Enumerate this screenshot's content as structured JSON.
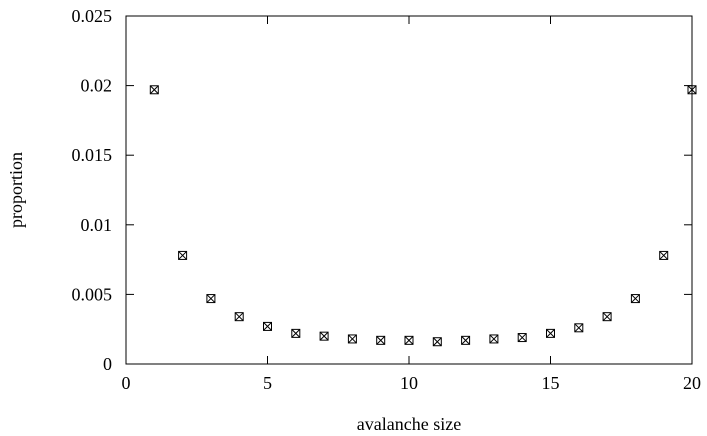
{
  "chart_data": {
    "type": "scatter",
    "title": "",
    "xlabel": "avalanche size",
    "ylabel": "proportion",
    "xlim": [
      0,
      20
    ],
    "ylim": [
      0,
      0.025
    ],
    "xticks": [
      "0",
      "5",
      "10",
      "15",
      "20"
    ],
    "yticks": [
      "0",
      "0.005",
      "0.01",
      "0.015",
      "0.02",
      "0.025"
    ],
    "grid": false,
    "marker": "boxed-x",
    "series": [
      {
        "x": [
          1,
          2,
          3,
          4,
          5,
          6,
          7,
          8,
          9,
          10,
          11,
          12,
          13,
          14,
          15,
          16,
          17,
          18,
          19,
          20
        ],
        "y": [
          0.0197,
          0.0078,
          0.0047,
          0.0034,
          0.0027,
          0.0022,
          0.002,
          0.0018,
          0.0017,
          0.0017,
          0.0016,
          0.0017,
          0.0018,
          0.0019,
          0.0022,
          0.0026,
          0.0034,
          0.0047,
          0.0078,
          0.0197
        ]
      }
    ]
  }
}
